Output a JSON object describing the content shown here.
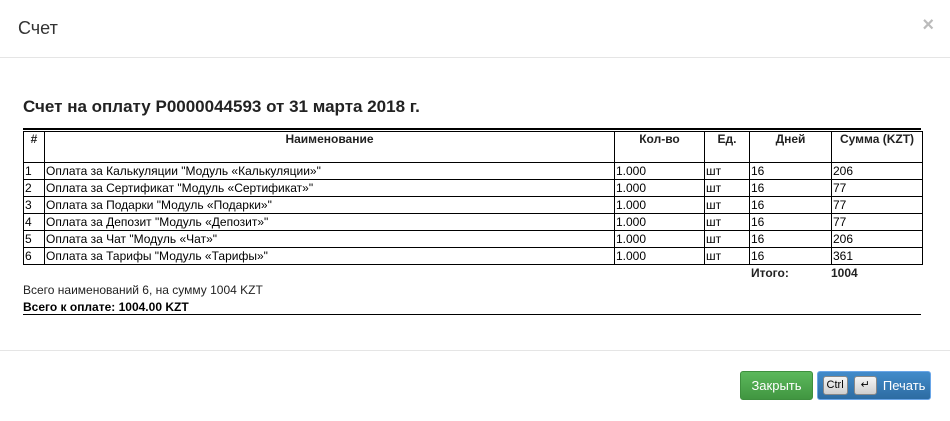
{
  "modal": {
    "title": "Счет",
    "close_icon": "×"
  },
  "invoice": {
    "title": "Счет на оплату P0000044593 от 31 марта 2018 г.",
    "columns": [
      "#",
      "Наименование",
      "Кол-во",
      "Ед.",
      "Дней",
      "Сумма (KZT)"
    ],
    "rows": [
      [
        "1",
        "Оплата за Калькуляции \"Модуль «Калькуляции»\"",
        "1.000",
        "шт",
        "16",
        "206"
      ],
      [
        "2",
        "Оплата за Сертификат \"Модуль «Сертификат»\"",
        "1.000",
        "шт",
        "16",
        "77"
      ],
      [
        "3",
        "Оплата за Подарки \"Модуль «Подарки»\"",
        "1.000",
        "шт",
        "16",
        "77"
      ],
      [
        "4",
        "Оплата за Депозит \"Модуль «Депозит»\"",
        "1.000",
        "шт",
        "16",
        "77"
      ],
      [
        "5",
        "Оплата за Чат \"Модуль «Чат»\"",
        "1.000",
        "шт",
        "16",
        "206"
      ],
      [
        "6",
        "Оплата за Тарифы \"Модуль «Тарифы»\"",
        "1.000",
        "шт",
        "16",
        "361"
      ]
    ],
    "total_label": "Итого:",
    "total_value": "1004",
    "summary": "Всего наименований 6, на сумму 1004 KZT",
    "to_pay": "Всего к оплате: 1004.00 KZT"
  },
  "footer": {
    "close_label": "Закрыть",
    "print_label": "Печать",
    "key_ctrl": "Ctrl",
    "key_enter": "↵"
  }
}
